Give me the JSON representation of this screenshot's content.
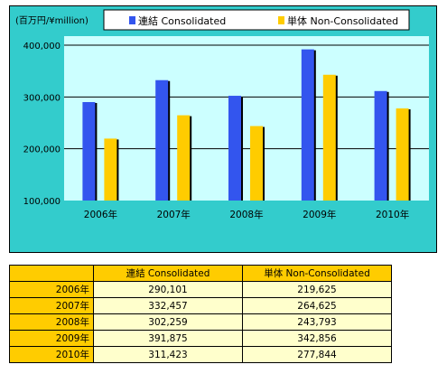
{
  "unit_label": "(百万円/¥million)",
  "colors": {
    "consolidated": "#3355ee",
    "non_consolidated": "#ffcc00",
    "plot_bg": "#ccffff",
    "panel_bg": "#33cccc"
  },
  "chart_data": {
    "type": "bar",
    "categories": [
      "2006年",
      "2007年",
      "2008年",
      "2009年",
      "2010年"
    ],
    "series": [
      {
        "name": "連結 Consolidated",
        "values": [
          290101,
          332457,
          302259,
          391875,
          311423
        ]
      },
      {
        "name": "単体 Non-Consolidated",
        "values": [
          219625,
          264625,
          243793,
          342856,
          277844
        ]
      }
    ],
    "ylim": [
      100000,
      400000
    ],
    "yticks": [
      100000,
      200000,
      300000,
      400000
    ],
    "ytick_labels": [
      "100,000",
      "200,000",
      "300,000",
      "400,000"
    ],
    "legend": "top"
  },
  "table": {
    "headers": [
      "連結 Consolidated",
      "単体 Non-Consolidated"
    ],
    "rows": [
      {
        "year": "2006年",
        "consolidated": "290,101",
        "non_consolidated": "219,625"
      },
      {
        "year": "2007年",
        "consolidated": "332,457",
        "non_consolidated": "264,625"
      },
      {
        "year": "2008年",
        "consolidated": "302,259",
        "non_consolidated": "243,793"
      },
      {
        "year": "2009年",
        "consolidated": "391,875",
        "non_consolidated": "342,856"
      },
      {
        "year": "2010年",
        "consolidated": "311,423",
        "non_consolidated": "277,844"
      }
    ]
  }
}
